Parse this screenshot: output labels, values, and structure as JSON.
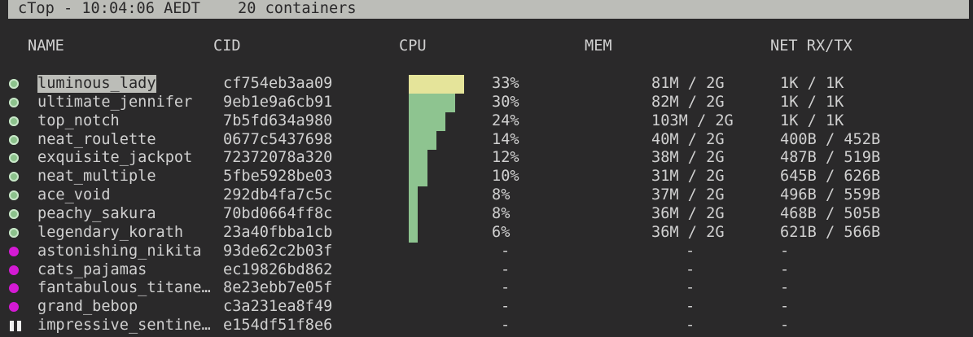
{
  "title": {
    "app": "cTop - 10:04:06 AEDT",
    "count": "20 containers"
  },
  "columns": {
    "name": "NAME",
    "cid": "CID",
    "cpu": "CPU",
    "mem": "MEM",
    "net": "NET RX/TX"
  },
  "colors": {
    "running": "#8cc28c",
    "stopped": "#d41ad4",
    "cpu_bar": "#8ec490",
    "cpu_bar_high": "#e5e49a"
  },
  "containers": [
    {
      "status": "running",
      "name": "luminous_lady",
      "cid": "cf754eb3aa09",
      "cpu": "33%",
      "cpu_value": 33,
      "mem": "81M / 2G",
      "net": "1K / 1K",
      "selected": true
    },
    {
      "status": "running",
      "name": "ultimate_jennifer",
      "cid": "9eb1e9a6cb91",
      "cpu": "30%",
      "cpu_value": 30,
      "mem": "82M / 2G",
      "net": "1K / 1K"
    },
    {
      "status": "running",
      "name": "top_notch",
      "cid": "7b5fd634a980",
      "cpu": "24%",
      "cpu_value": 24,
      "mem": "103M / 2G",
      "net": "1K / 1K"
    },
    {
      "status": "running",
      "name": "neat_roulette",
      "cid": "0677c5437698",
      "cpu": "14%",
      "cpu_value": 14,
      "mem": "40M / 2G",
      "net": "400B / 452B"
    },
    {
      "status": "running",
      "name": "exquisite_jackpot",
      "cid": "72372078a320",
      "cpu": "12%",
      "cpu_value": 12,
      "mem": "38M / 2G",
      "net": "487B / 519B"
    },
    {
      "status": "running",
      "name": "neat_multiple",
      "cid": "5fbe5928be03",
      "cpu": "10%",
      "cpu_value": 10,
      "mem": "31M / 2G",
      "net": "645B / 626B"
    },
    {
      "status": "running",
      "name": "ace_void",
      "cid": "292db4fa7c5c",
      "cpu": "8%",
      "cpu_value": 8,
      "mem": "37M / 2G",
      "net": "496B / 559B"
    },
    {
      "status": "running",
      "name": "peachy_sakura",
      "cid": "70bd0664ff8c",
      "cpu": "8%",
      "cpu_value": 8,
      "mem": "36M / 2G",
      "net": "468B / 505B"
    },
    {
      "status": "running",
      "name": "legendary_korath",
      "cid": "23a40fbba1cb",
      "cpu": "6%",
      "cpu_value": 6,
      "mem": "36M / 2G",
      "net": "621B / 566B"
    },
    {
      "status": "stopped",
      "name": "astonishing_nikita",
      "cid": "93de62c2b03f",
      "cpu": "-",
      "mem": "-",
      "net": "-"
    },
    {
      "status": "stopped",
      "name": "cats_pajamas",
      "cid": "ec19826bd862",
      "cpu": "-",
      "mem": "-",
      "net": "-"
    },
    {
      "status": "stopped",
      "name": "fantabulous_titane…",
      "cid": "8e23ebb7e05f",
      "cpu": "-",
      "mem": "-",
      "net": "-"
    },
    {
      "status": "stopped",
      "name": "grand_bebop",
      "cid": "c3a231ea8f49",
      "cpu": "-",
      "mem": "-",
      "net": "-"
    },
    {
      "status": "paused",
      "name": "impressive_sentine…",
      "cid": "e154df51f8e6",
      "cpu": "-",
      "mem": "-",
      "net": "-"
    }
  ]
}
